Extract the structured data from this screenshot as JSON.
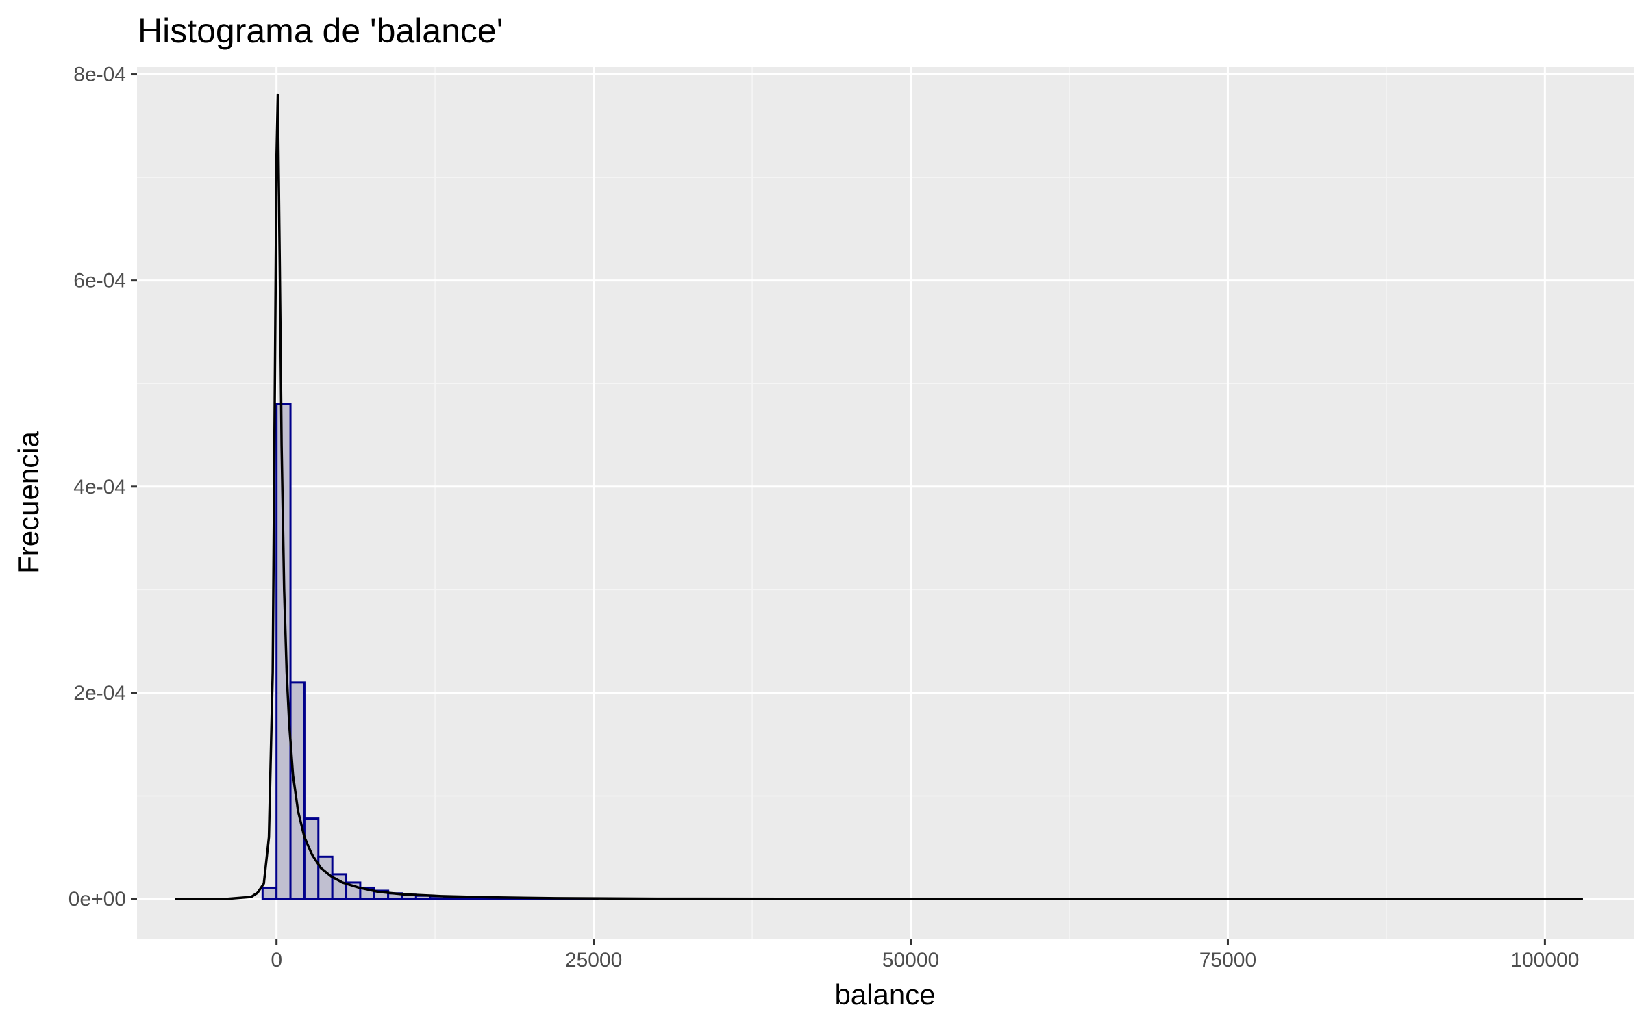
{
  "chart_data": {
    "type": "bar",
    "title": "Histograma de 'balance'",
    "xlabel": "balance",
    "ylabel": "Frecuencia",
    "xlim": [
      -11000,
      107000
    ],
    "ylim": [
      -3.85e-05,
      0.000807
    ],
    "x_ticks": [
      0,
      25000,
      50000,
      75000,
      100000
    ],
    "x_tick_labels": [
      "0",
      "25000",
      "50000",
      "75000",
      "100000"
    ],
    "y_ticks": [
      0,
      0.0002,
      0.0004,
      0.0006,
      0.0008
    ],
    "y_tick_labels": [
      "0e+00",
      "2e-04",
      "4e-04",
      "6e-04",
      "8e-04"
    ],
    "grid": true,
    "colors": {
      "panel_background": "#ebebeb",
      "grid_major": "#ffffff",
      "grid_minor": "#f5f5f5",
      "bar_outline": "#00008b",
      "bar_fill": "#c0bfd0",
      "density_line": "#000000"
    },
    "histogram": {
      "bin_width": 1100,
      "bins": [
        {
          "x": -1100,
          "value": 1.1e-05
        },
        {
          "x": 0,
          "value": 0.00048
        },
        {
          "x": 1100,
          "value": 0.00021
        },
        {
          "x": 2200,
          "value": 7.8e-05
        },
        {
          "x": 3300,
          "value": 4.1e-05
        },
        {
          "x": 4400,
          "value": 2.4e-05
        },
        {
          "x": 5500,
          "value": 1.6e-05
        },
        {
          "x": 6600,
          "value": 1.1e-05
        },
        {
          "x": 7700,
          "value": 8e-06
        },
        {
          "x": 8800,
          "value": 5.5e-06
        },
        {
          "x": 9900,
          "value": 4.2e-06
        },
        {
          "x": 11000,
          "value": 3.2e-06
        },
        {
          "x": 12100,
          "value": 2.5e-06
        },
        {
          "x": 13200,
          "value": 1.9e-06
        },
        {
          "x": 14300,
          "value": 1.5e-06
        },
        {
          "x": 15400,
          "value": 1.2e-06
        },
        {
          "x": 16500,
          "value": 1e-06
        },
        {
          "x": 17600,
          "value": 8e-07
        },
        {
          "x": 18700,
          "value": 6e-07
        },
        {
          "x": 19800,
          "value": 5e-07
        },
        {
          "x": 20900,
          "value": 4e-07
        },
        {
          "x": 22000,
          "value": 4e-07
        },
        {
          "x": 23100,
          "value": 3e-07
        },
        {
          "x": 24200,
          "value": 3e-07
        }
      ]
    },
    "density": {
      "x": [
        -8000,
        -4000,
        -2000,
        -1500,
        -1000,
        -600,
        -300,
        -100,
        0,
        100,
        250,
        400,
        600,
        800,
        1000,
        1300,
        1700,
        2200,
        2800,
        3500,
        4300,
        5200,
        6500,
        8000,
        10000,
        13000,
        17000,
        22000,
        30000,
        50000,
        75000,
        103000
      ],
      "y": [
        0,
        0,
        2e-06,
        6e-06,
        1.5e-05,
        6e-05,
        0.00022,
        0.00055,
        0.00072,
        0.00078,
        0.00062,
        0.00044,
        0.0003,
        0.00022,
        0.00017,
        0.00012,
        8.5e-05,
        6e-05,
        4.3e-05,
        3e-05,
        2.2e-05,
        1.6e-05,
        1.1e-05,
        7e-06,
        4.5e-06,
        2.8e-06,
        1.6e-06,
        8e-07,
        3e-07,
        1e-07,
        0,
        0
      ]
    }
  }
}
